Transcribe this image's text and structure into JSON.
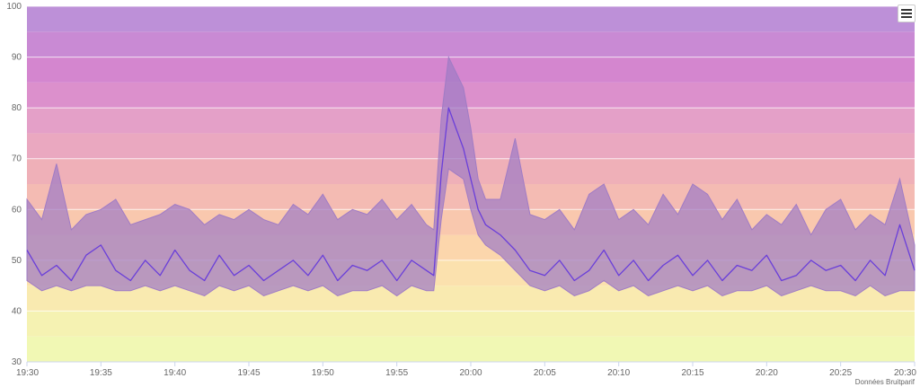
{
  "chart_data": {
    "type": "area",
    "title": "",
    "xlabel": "",
    "ylabel": "",
    "x_range": [
      "19:30",
      "20:30"
    ],
    "ylim": [
      30,
      100
    ],
    "y_ticks": [
      "30",
      "40",
      "50",
      "60",
      "70",
      "80",
      "90",
      "100"
    ],
    "x_ticks": [
      "19:30",
      "19:35",
      "19:40",
      "19:45",
      "19:50",
      "19:55",
      "20:00",
      "20:05",
      "20:10",
      "20:15",
      "20:20",
      "20:25",
      "20:30"
    ],
    "grid": true,
    "legend": "none",
    "series_color": "#6a3fd9",
    "range_fill": "#a07cc5",
    "band_colors": [
      "#f1f8b4",
      "#f5f2b2",
      "#f9eab0",
      "#fbe1ae",
      "#fcd6ac",
      "#f9c8ae",
      "#f4bbb3",
      "#efb0b8",
      "#eaa8c0",
      "#e4a0c8",
      "#dc90cc",
      "#d486cf",
      "#c98ad4",
      "#bd90d8"
    ],
    "series": [
      {
        "kind": "mean",
        "x": [
          "19:30",
          "19:31",
          "19:32",
          "19:33",
          "19:34",
          "19:35",
          "19:36",
          "19:37",
          "19:38",
          "19:39",
          "19:40",
          "19:41",
          "19:42",
          "19:43",
          "19:44",
          "19:45",
          "19:46",
          "19:47",
          "19:48",
          "19:49",
          "19:50",
          "19:51",
          "19:52",
          "19:53",
          "19:54",
          "19:55",
          "19:56",
          "19:57",
          "19:57:30",
          "19:58",
          "19:58:30",
          "19:59",
          "19:59:30",
          "20:00",
          "20:00:30",
          "20:01",
          "20:02",
          "20:03",
          "20:04",
          "20:05",
          "20:06",
          "20:07",
          "20:08",
          "20:09",
          "20:10",
          "20:11",
          "20:12",
          "20:13",
          "20:14",
          "20:15",
          "20:16",
          "20:17",
          "20:18",
          "20:19",
          "20:20",
          "20:21",
          "20:22",
          "20:23",
          "20:24",
          "20:25",
          "20:26",
          "20:27",
          "20:28",
          "20:29",
          "20:30"
        ],
        "values": [
          52,
          47,
          49,
          46,
          51,
          53,
          48,
          46,
          50,
          47,
          52,
          48,
          46,
          51,
          47,
          49,
          46,
          48,
          50,
          47,
          51,
          46,
          49,
          48,
          50,
          46,
          50,
          48,
          47,
          67,
          80,
          76,
          72,
          66,
          60,
          57,
          55,
          52,
          48,
          47,
          50,
          46,
          48,
          52,
          47,
          50,
          46,
          49,
          51,
          47,
          50,
          46,
          49,
          48,
          51,
          46,
          47,
          50,
          48,
          49,
          46,
          50,
          47,
          57,
          48
        ]
      },
      {
        "kind": "max",
        "x": [
          "19:30",
          "19:31",
          "19:32",
          "19:33",
          "19:34",
          "19:35",
          "19:36",
          "19:37",
          "19:38",
          "19:39",
          "19:40",
          "19:41",
          "19:42",
          "19:43",
          "19:44",
          "19:45",
          "19:46",
          "19:47",
          "19:48",
          "19:49",
          "19:50",
          "19:51",
          "19:52",
          "19:53",
          "19:54",
          "19:55",
          "19:56",
          "19:57",
          "19:57:30",
          "19:58",
          "19:58:30",
          "19:59",
          "19:59:30",
          "20:00",
          "20:00:30",
          "20:01",
          "20:02",
          "20:03",
          "20:04",
          "20:05",
          "20:06",
          "20:07",
          "20:08",
          "20:09",
          "20:10",
          "20:11",
          "20:12",
          "20:13",
          "20:14",
          "20:15",
          "20:16",
          "20:17",
          "20:18",
          "20:19",
          "20:20",
          "20:21",
          "20:22",
          "20:23",
          "20:24",
          "20:25",
          "20:26",
          "20:27",
          "20:28",
          "20:29",
          "20:30"
        ],
        "values": [
          62,
          58,
          69,
          56,
          59,
          60,
          62,
          57,
          58,
          59,
          61,
          60,
          57,
          59,
          58,
          60,
          58,
          57,
          61,
          59,
          63,
          58,
          60,
          59,
          62,
          58,
          61,
          57,
          56,
          78,
          90,
          87,
          84,
          76,
          66,
          62,
          62,
          74,
          59,
          58,
          60,
          56,
          63,
          65,
          58,
          60,
          57,
          63,
          59,
          65,
          63,
          58,
          62,
          56,
          59,
          57,
          61,
          55,
          60,
          62,
          56,
          59,
          57,
          66,
          53
        ]
      },
      {
        "kind": "min",
        "x": [
          "19:30",
          "19:31",
          "19:32",
          "19:33",
          "19:34",
          "19:35",
          "19:36",
          "19:37",
          "19:38",
          "19:39",
          "19:40",
          "19:41",
          "19:42",
          "19:43",
          "19:44",
          "19:45",
          "19:46",
          "19:47",
          "19:48",
          "19:49",
          "19:50",
          "19:51",
          "19:52",
          "19:53",
          "19:54",
          "19:55",
          "19:56",
          "19:57",
          "19:57:30",
          "19:58",
          "19:58:30",
          "19:59",
          "19:59:30",
          "20:00",
          "20:00:30",
          "20:01",
          "20:02",
          "20:03",
          "20:04",
          "20:05",
          "20:06",
          "20:07",
          "20:08",
          "20:09",
          "20:10",
          "20:11",
          "20:12",
          "20:13",
          "20:14",
          "20:15",
          "20:16",
          "20:17",
          "20:18",
          "20:19",
          "20:20",
          "20:21",
          "20:22",
          "20:23",
          "20:24",
          "20:25",
          "20:26",
          "20:27",
          "20:28",
          "20:29",
          "20:30"
        ],
        "values": [
          46,
          44,
          45,
          44,
          45,
          45,
          44,
          44,
          45,
          44,
          45,
          44,
          43,
          45,
          44,
          45,
          43,
          44,
          45,
          44,
          45,
          43,
          44,
          44,
          45,
          43,
          45,
          44,
          44,
          58,
          68,
          67,
          66,
          60,
          55,
          53,
          51,
          48,
          45,
          44,
          45,
          43,
          44,
          46,
          44,
          45,
          43,
          44,
          45,
          44,
          45,
          43,
          44,
          44,
          45,
          43,
          44,
          45,
          44,
          44,
          43,
          45,
          43,
          44,
          44
        ]
      }
    ],
    "credit": "Données Bruitparif"
  }
}
